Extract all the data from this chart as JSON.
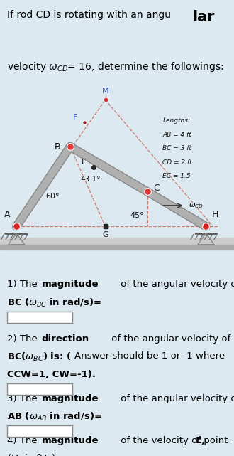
{
  "bg_color": "#dce9f0",
  "rod_color": "#b0b0b0",
  "rod_edge_color": "#888888",
  "dashed_color": "#cc6655",
  "pivot_color_red": "#dd2222",
  "pivot_color_dark": "#333333",
  "ground_color": "#999999",
  "lengths_lines": [
    "Lengths:",
    "AB = 4 ft",
    "BC = 3 ft",
    "CD = 2 ft",
    "EC = 1.5"
  ],
  "angle_60": "60°",
  "angle_45": "45°",
  "angle_43": "43.1°",
  "wCD_label": "$\\omega_{CD}$",
  "label_M": "M",
  "label_F": "F",
  "label_B": "B",
  "label_E": "E",
  "label_C": "C",
  "label_A": "A",
  "label_G": "G",
  "label_H": "H"
}
